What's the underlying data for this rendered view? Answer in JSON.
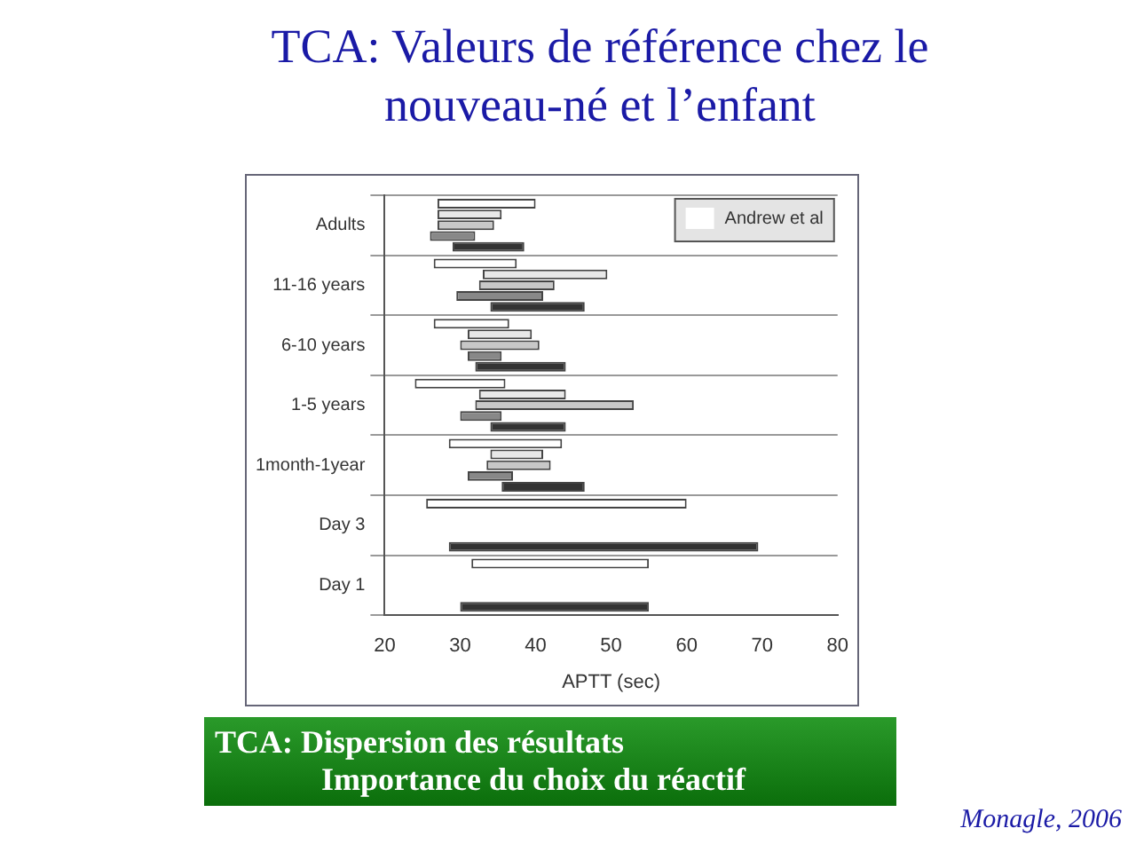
{
  "chart_data": {
    "type": "bar",
    "orientation": "horizontal",
    "title": "TCA: Valeurs de référence chez le nouveau-né et l’enfant",
    "xlabel": "APTT (sec)",
    "categories": [
      "Adults",
      "11-16 years",
      "6-10 years",
      "1-5 years",
      "1month-1year",
      "Day 3",
      "Day 1"
    ],
    "series": [
      {
        "name": "Andrew et al",
        "color": "#ffffff",
        "base": [
          27,
          26.5,
          26.5,
          24,
          28.5,
          25.5,
          31.5
        ],
        "values": [
          13,
          11,
          10,
          12,
          15,
          34.5,
          23.5
        ]
      },
      {
        "color": "#e8e8e8",
        "base": [
          27,
          33,
          31,
          32.5,
          34,
          null,
          null
        ],
        "values": [
          8.5,
          16.5,
          8.5,
          11.5,
          7,
          null,
          null
        ]
      },
      {
        "color": "#c8c8c8",
        "base": [
          27,
          32.5,
          30,
          32,
          33.5,
          null,
          null
        ],
        "values": [
          7.5,
          10,
          10.5,
          21,
          8.5,
          null,
          null
        ]
      },
      {
        "color": "#888888",
        "base": [
          26,
          29.5,
          31,
          30,
          31,
          null,
          null
        ],
        "values": [
          6,
          11.5,
          4.5,
          5.5,
          6,
          null,
          null
        ]
      },
      {
        "color": "#333333",
        "base": [
          29,
          34,
          32,
          34,
          35.5,
          28.5,
          30
        ],
        "values": [
          9.5,
          12.5,
          12,
          10,
          11,
          41,
          25
        ]
      }
    ],
    "xlim": [
      20,
      80
    ],
    "xticks": [
      20,
      30,
      40,
      50,
      60,
      70,
      80
    ],
    "grid": "y",
    "legend": "top right",
    "annotations": [
      "TCA: Dispersion des résultats",
      "Importance du choix du réactif",
      "Monagle, 2006"
    ]
  }
}
